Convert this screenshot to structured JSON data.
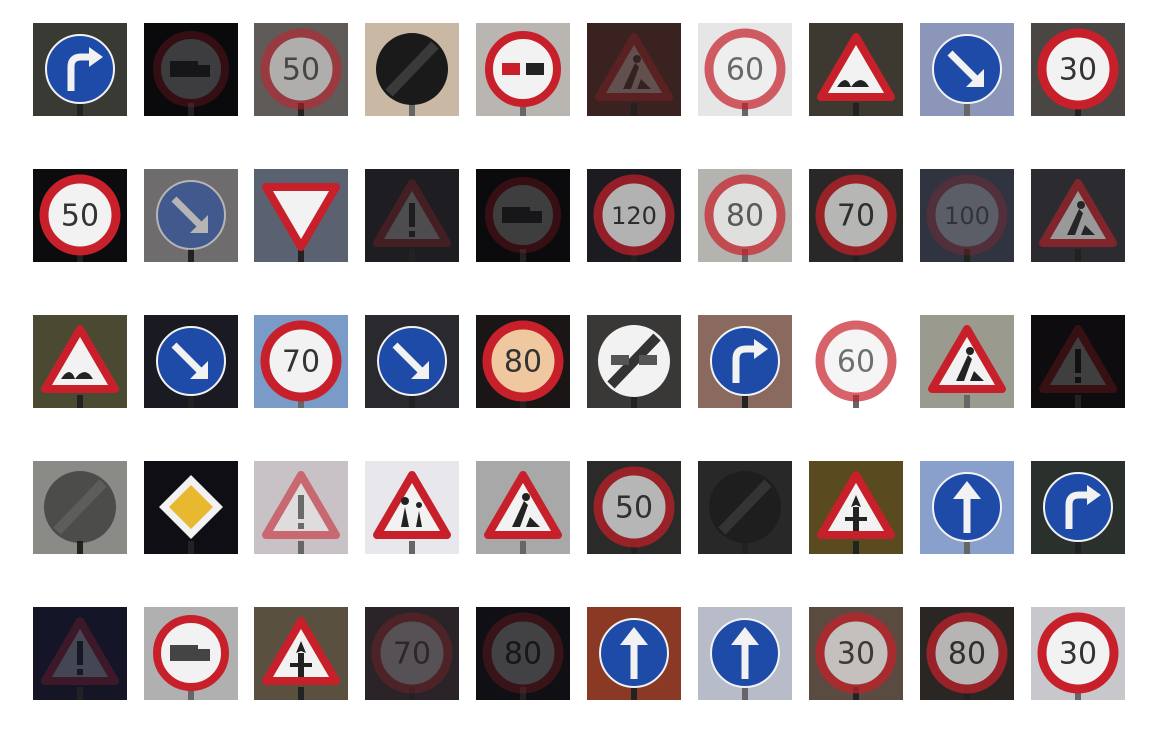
{
  "grid": {
    "rows": 5,
    "cols": 10,
    "images": [
      {
        "sign": "turn-right-ahead-sign",
        "bg": "#3a3a34",
        "light": false,
        "label": ""
      },
      {
        "sign": "no-passing-trucks-sign",
        "bg": "#0a0a0c",
        "light": false,
        "label": "",
        "dark": true
      },
      {
        "sign": "speed-limit-sign",
        "bg": "#5e5b59",
        "light": false,
        "label": "50",
        "faded": true
      },
      {
        "sign": "end-of-restrictions-sign",
        "bg": "#c9b8a4",
        "light": true,
        "label": ""
      },
      {
        "sign": "no-passing-sign",
        "bg": "#b9b6b1",
        "light": true,
        "label": ""
      },
      {
        "sign": "road-work-sign",
        "bg": "#3a2220",
        "light": false,
        "label": "",
        "dark": true
      },
      {
        "sign": "speed-limit-sign",
        "bg": "#e6e6e6",
        "light": true,
        "label": "60",
        "dim": true
      },
      {
        "sign": "bumpy-road-sign",
        "bg": "#3d3930",
        "light": false,
        "label": ""
      },
      {
        "sign": "keep-right-sign",
        "bg": "#8b96b8",
        "light": true,
        "label": ""
      },
      {
        "sign": "speed-limit-sign",
        "bg": "#4a4644",
        "light": false,
        "label": "30"
      },
      {
        "sign": "speed-limit-sign",
        "bg": "#0c0c0e",
        "light": false,
        "label": "50"
      },
      {
        "sign": "keep-right-sign",
        "bg": "#6e6c6c",
        "light": false,
        "label": "",
        "faded": true
      },
      {
        "sign": "yield-sign",
        "bg": "#5a6272",
        "light": false,
        "label": ""
      },
      {
        "sign": "general-caution-sign",
        "bg": "#1e1e22",
        "light": false,
        "label": "",
        "dark": true
      },
      {
        "sign": "no-passing-trucks-sign",
        "bg": "#0b0b0d",
        "light": false,
        "label": "",
        "dark": true
      },
      {
        "sign": "speed-limit-sign",
        "bg": "#1c1c20",
        "light": false,
        "label": "120",
        "dim": true
      },
      {
        "sign": "speed-limit-sign",
        "bg": "#b5b3b0",
        "light": true,
        "label": "80",
        "dim": true
      },
      {
        "sign": "speed-limit-sign",
        "bg": "#2a2826",
        "light": false,
        "label": "70",
        "dim": true
      },
      {
        "sign": "speed-limit-sign",
        "bg": "#303440",
        "light": false,
        "label": "100",
        "dark": true
      },
      {
        "sign": "road-work-sign",
        "bg": "#2c2c30",
        "light": false,
        "label": "",
        "faded": true
      },
      {
        "sign": "bumpy-road-sign",
        "bg": "#4a4a32",
        "light": false,
        "label": ""
      },
      {
        "sign": "keep-right-sign",
        "bg": "#1a1a22",
        "light": false,
        "label": ""
      },
      {
        "sign": "speed-limit-sign",
        "bg": "#7a9ac8",
        "light": true,
        "label": "70"
      },
      {
        "sign": "keep-right-sign",
        "bg": "#2a2a2e",
        "light": false,
        "label": ""
      },
      {
        "sign": "speed-limit-sign",
        "bg": "#1a1616",
        "light": false,
        "label": "80",
        "glow": true
      },
      {
        "sign": "end-no-passing-sign",
        "bg": "#3a3836",
        "light": false,
        "label": ""
      },
      {
        "sign": "turn-right-ahead-sign",
        "bg": "#8a6a5e",
        "light": false,
        "label": ""
      },
      {
        "sign": "speed-limit-sign",
        "bg": "#ffffff",
        "light": true,
        "label": "60",
        "dim": true
      },
      {
        "sign": "road-work-sign",
        "bg": "#9a9a8e",
        "light": true,
        "label": ""
      },
      {
        "sign": "general-caution-sign",
        "bg": "#0e0c0e",
        "light": false,
        "label": "",
        "dark": true
      },
      {
        "sign": "end-of-restrictions-sign",
        "bg": "#8a8a86",
        "light": false,
        "label": "",
        "faded": true
      },
      {
        "sign": "priority-road-sign",
        "bg": "#0e0e14",
        "light": false,
        "label": ""
      },
      {
        "sign": "general-caution-sign",
        "bg": "#c8c2c6",
        "light": true,
        "label": "",
        "faded": true
      },
      {
        "sign": "children-crossing-sign",
        "bg": "#e8e8ec",
        "light": true,
        "label": ""
      },
      {
        "sign": "road-work-sign",
        "bg": "#a8a8a8",
        "light": true,
        "label": ""
      },
      {
        "sign": "speed-limit-sign",
        "bg": "#2a2a28",
        "light": false,
        "label": "50",
        "dim": true
      },
      {
        "sign": "end-of-restrictions-sign",
        "bg": "#282828",
        "light": false,
        "label": "",
        "dim": true
      },
      {
        "sign": "right-of-way-sign",
        "bg": "#5a4a20",
        "light": false,
        "label": ""
      },
      {
        "sign": "ahead-only-sign",
        "bg": "#8aa0cc",
        "light": true,
        "label": ""
      },
      {
        "sign": "turn-right-ahead-sign",
        "bg": "#2a302c",
        "light": false,
        "label": ""
      },
      {
        "sign": "general-caution-sign",
        "bg": "#141628",
        "light": false,
        "label": "",
        "dark": true
      },
      {
        "sign": "no-passing-trucks-sign",
        "bg": "#b0b0b0",
        "light": true,
        "label": ""
      },
      {
        "sign": "right-of-way-sign",
        "bg": "#5a5040",
        "light": false,
        "label": ""
      },
      {
        "sign": "speed-limit-sign",
        "bg": "#2a2428",
        "light": false,
        "label": "70",
        "dark": true
      },
      {
        "sign": "speed-limit-sign",
        "bg": "#101014",
        "light": false,
        "label": "80",
        "dark": true
      },
      {
        "sign": "ahead-only-sign",
        "bg": "#8a3a24",
        "light": false,
        "label": ""
      },
      {
        "sign": "ahead-only-sign",
        "bg": "#b8bcc8",
        "light": true,
        "label": ""
      },
      {
        "sign": "speed-limit-sign",
        "bg": "#5a4a40",
        "light": false,
        "label": "30",
        "dim": true
      },
      {
        "sign": "speed-limit-sign",
        "bg": "#2a2624",
        "light": false,
        "label": "80",
        "dim": true
      },
      {
        "sign": "speed-limit-sign",
        "bg": "#c8c8cc",
        "light": true,
        "label": "30"
      }
    ]
  }
}
